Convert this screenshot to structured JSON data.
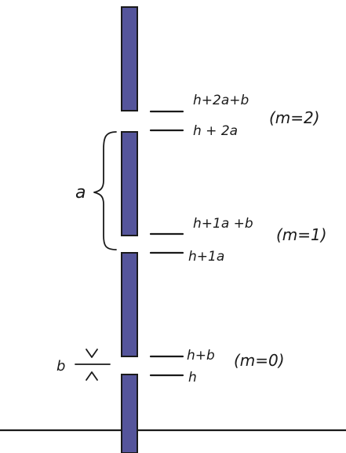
{
  "labels": {
    "h2ab": "h+2a+b",
    "h2a": "h + 2a",
    "h1ab": "h+1a +b",
    "h1a": "h+1a",
    "hb": "h+b",
    "h": "h",
    "m2": "(m=2)",
    "m1": "(m=1)",
    "m0": "(m=0)",
    "a": "a",
    "b": "b"
  },
  "colors": {
    "segment_fill": "#55559b",
    "ink": "#1a1a1a",
    "background": "#ffffff"
  }
}
